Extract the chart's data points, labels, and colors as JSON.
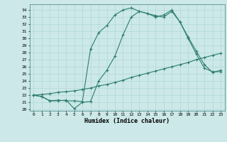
{
  "xlabel": "Humidex (Indice chaleur)",
  "bg_color": "#cce8e8",
  "grid_color": "#b0d8d8",
  "line_color": "#2d7d6e",
  "xlim": [
    -0.5,
    23.5
  ],
  "ylim": [
    19.8,
    34.8
  ],
  "yticks": [
    20,
    21,
    22,
    23,
    24,
    25,
    26,
    27,
    28,
    29,
    30,
    31,
    32,
    33,
    34
  ],
  "xticks": [
    0,
    1,
    2,
    3,
    4,
    5,
    6,
    7,
    8,
    9,
    10,
    11,
    12,
    13,
    14,
    15,
    16,
    17,
    18,
    19,
    20,
    21,
    22,
    23
  ],
  "line1_x": [
    0,
    1,
    2,
    3,
    4,
    5,
    6,
    7,
    8,
    9,
    10,
    11,
    12,
    13,
    14,
    15,
    16,
    17,
    18,
    19,
    20,
    21,
    22,
    23
  ],
  "line1_y": [
    22.0,
    22.1,
    22.2,
    22.4,
    22.5,
    22.6,
    22.8,
    23.0,
    23.3,
    23.5,
    23.8,
    24.1,
    24.5,
    24.8,
    25.1,
    25.4,
    25.7,
    26.0,
    26.3,
    26.6,
    27.0,
    27.3,
    27.6,
    27.9
  ],
  "line2_x": [
    0,
    1,
    2,
    3,
    4,
    5,
    6,
    7,
    8,
    9,
    10,
    11,
    12,
    13,
    14,
    15,
    16,
    17,
    18,
    19,
    20,
    21,
    22,
    23
  ],
  "line2_y": [
    22.0,
    21.8,
    21.2,
    21.2,
    21.3,
    20.1,
    21.0,
    21.1,
    24.0,
    25.5,
    27.5,
    30.5,
    33.0,
    33.8,
    33.5,
    33.2,
    33.0,
    33.8,
    32.3,
    30.0,
    27.8,
    25.8,
    25.3,
    25.3
  ],
  "line3_x": [
    0,
    1,
    2,
    3,
    4,
    5,
    6,
    7,
    8,
    9,
    10,
    11,
    12,
    13,
    14,
    15,
    16,
    17,
    18,
    19,
    20,
    21,
    22,
    23
  ],
  "line3_y": [
    22.0,
    21.8,
    21.2,
    21.3,
    21.2,
    21.2,
    21.1,
    28.5,
    30.8,
    31.8,
    33.3,
    34.0,
    34.3,
    33.8,
    33.5,
    33.0,
    33.3,
    34.0,
    32.3,
    30.2,
    28.2,
    26.3,
    25.2,
    25.5
  ]
}
